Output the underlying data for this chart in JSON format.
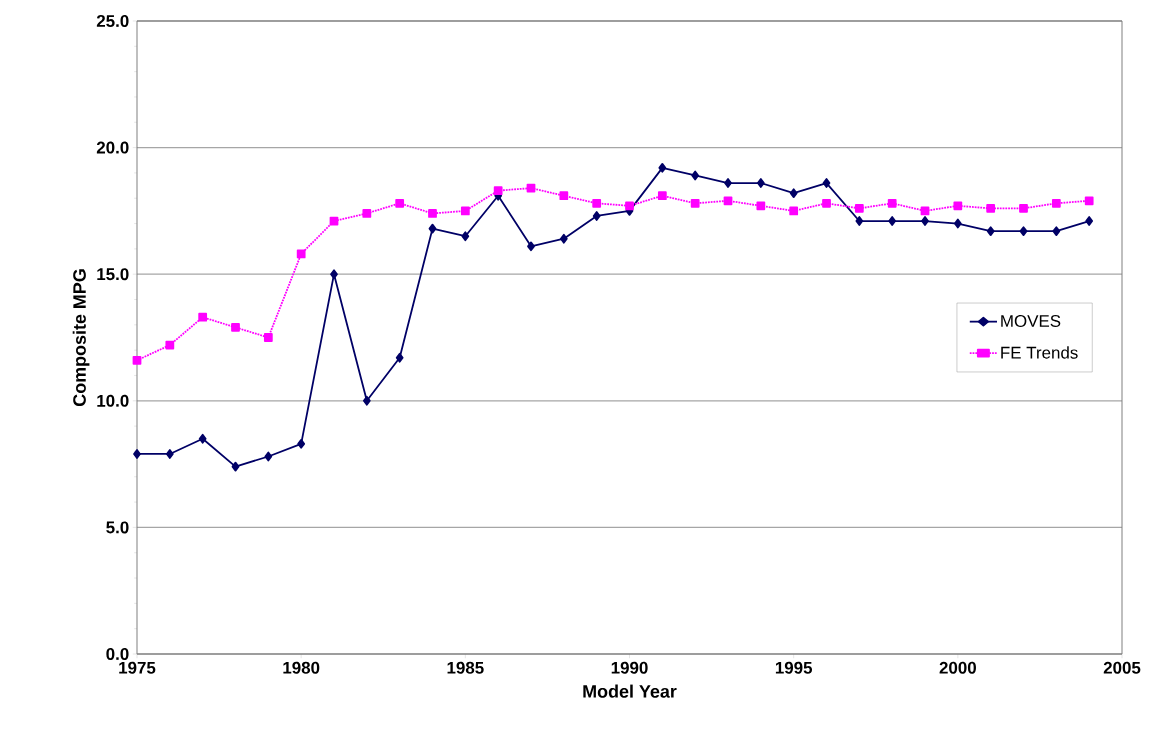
{
  "chart_data": {
    "type": "line",
    "xlabel": "Model Year",
    "ylabel": "Composite MPG",
    "x": [
      1975,
      1976,
      1977,
      1978,
      1979,
      1980,
      1981,
      1982,
      1983,
      1984,
      1985,
      1986,
      1987,
      1988,
      1989,
      1990,
      1991,
      1992,
      1993,
      1994,
      1995,
      1996,
      1997,
      1998,
      1999,
      2000,
      2001,
      2002,
      2003,
      2004
    ],
    "series": [
      {
        "name": "MOVES",
        "color": "#000066",
        "marker": "diamond",
        "line_style": "solid",
        "values": [
          7.9,
          7.9,
          8.5,
          7.4,
          7.8,
          8.3,
          15.0,
          10.0,
          11.7,
          16.8,
          16.5,
          18.1,
          16.1,
          16.4,
          17.3,
          17.5,
          19.2,
          18.9,
          18.6,
          18.6,
          18.2,
          18.6,
          17.1,
          17.1,
          17.1,
          17.0,
          16.7,
          16.7,
          16.7,
          17.1
        ]
      },
      {
        "name": "FE Trends",
        "color": "#ff00ff",
        "marker": "square",
        "line_style": "dotted",
        "values": [
          11.6,
          12.2,
          13.3,
          12.9,
          12.5,
          15.8,
          17.1,
          17.4,
          17.8,
          17.4,
          17.5,
          18.3,
          18.4,
          18.1,
          17.8,
          17.7,
          18.1,
          17.8,
          17.9,
          17.7,
          17.5,
          17.8,
          17.6,
          17.8,
          17.5,
          17.7,
          17.6,
          17.6,
          17.8,
          17.9
        ]
      }
    ],
    "xlim": [
      1975,
      2005
    ],
    "xticks": [
      1975,
      1980,
      1985,
      1990,
      1995,
      2000,
      2005
    ],
    "ylim": [
      0,
      25
    ],
    "yticks": [
      {
        "value": 0,
        "label": "0.0"
      },
      {
        "value": 5,
        "label": "5.0"
      },
      {
        "value": 10,
        "label": "10.0"
      },
      {
        "value": 15,
        "label": "15.0"
      },
      {
        "value": 20,
        "label": "20.0"
      },
      {
        "value": 25,
        "label": "25.0"
      }
    ],
    "grid": "y",
    "legend": "right"
  }
}
